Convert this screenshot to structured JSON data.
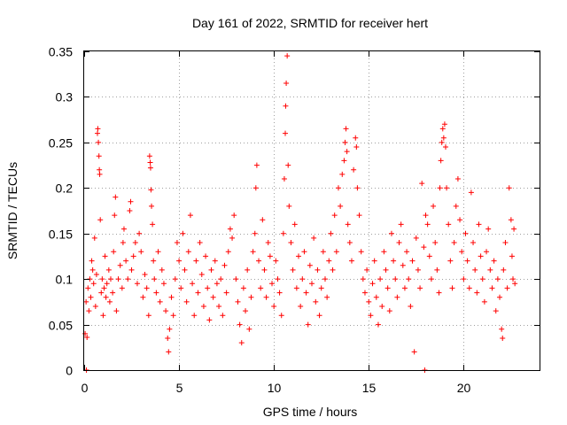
{
  "chart_data": {
    "type": "scatter",
    "title": "Day 161 of 2022, SRMTID for receiver hert",
    "xlabel": "GPS time / hours",
    "ylabel": "SRMTID / TECUs",
    "xlim": [
      0,
      24
    ],
    "ylim": [
      0,
      0.35
    ],
    "xticks": [
      "0",
      "5",
      "10",
      "15",
      "20"
    ],
    "yticks": [
      "0",
      "0.05",
      "0.1",
      "0.15",
      "0.2",
      "0.25",
      "0.3",
      "0.35"
    ],
    "grid": true,
    "marker": "plus",
    "series": [
      {
        "color": "#ff0000",
        "points": [
          [
            0.05,
            0.04
          ],
          [
            0.1,
            0.075
          ],
          [
            0.12,
            0.0
          ],
          [
            0.15,
            0.036
          ],
          [
            0.2,
            0.09
          ],
          [
            0.25,
            0.065
          ],
          [
            0.3,
            0.1
          ],
          [
            0.35,
            0.08
          ],
          [
            0.4,
            0.12
          ],
          [
            0.45,
            0.11
          ],
          [
            0.5,
            0.095
          ],
          [
            0.55,
            0.145
          ],
          [
            0.6,
            0.07
          ],
          [
            0.65,
            0.105
          ],
          [
            0.7,
            0.26
          ],
          [
            0.72,
            0.265
          ],
          [
            0.75,
            0.25
          ],
          [
            0.78,
            0.235
          ],
          [
            0.8,
            0.22
          ],
          [
            0.82,
            0.215
          ],
          [
            0.85,
            0.165
          ],
          [
            0.9,
            0.085
          ],
          [
            0.95,
            0.1
          ],
          [
            1.0,
            0.06
          ],
          [
            1.05,
            0.09
          ],
          [
            1.1,
            0.125
          ],
          [
            1.15,
            0.08
          ],
          [
            1.2,
            0.095
          ],
          [
            1.3,
            0.11
          ],
          [
            1.35,
            0.075
          ],
          [
            1.4,
            0.1
          ],
          [
            1.5,
            0.085
          ],
          [
            1.55,
            0.13
          ],
          [
            1.6,
            0.17
          ],
          [
            1.65,
            0.19
          ],
          [
            1.7,
            0.065
          ],
          [
            1.8,
            0.1
          ],
          [
            1.9,
            0.115
          ],
          [
            2.0,
            0.09
          ],
          [
            2.05,
            0.14
          ],
          [
            2.1,
            0.155
          ],
          [
            2.2,
            0.12
          ],
          [
            2.3,
            0.1
          ],
          [
            2.4,
            0.175
          ],
          [
            2.45,
            0.185
          ],
          [
            2.5,
            0.11
          ],
          [
            2.6,
            0.125
          ],
          [
            2.7,
            0.14
          ],
          [
            2.8,
            0.095
          ],
          [
            2.9,
            0.15
          ],
          [
            3.0,
            0.13
          ],
          [
            3.1,
            0.08
          ],
          [
            3.2,
            0.105
          ],
          [
            3.3,
            0.09
          ],
          [
            3.4,
            0.06
          ],
          [
            3.45,
            0.235
          ],
          [
            3.48,
            0.228
          ],
          [
            3.5,
            0.222
          ],
          [
            3.52,
            0.198
          ],
          [
            3.55,
            0.18
          ],
          [
            3.6,
            0.16
          ],
          [
            3.65,
            0.12
          ],
          [
            3.7,
            0.1
          ],
          [
            3.8,
            0.085
          ],
          [
            3.9,
            0.13
          ],
          [
            4.0,
            0.075
          ],
          [
            4.1,
            0.11
          ],
          [
            4.2,
            0.095
          ],
          [
            4.3,
            0.065
          ],
          [
            4.4,
            0.035
          ],
          [
            4.45,
            0.02
          ],
          [
            4.5,
            0.045
          ],
          [
            4.6,
            0.08
          ],
          [
            4.7,
            0.06
          ],
          [
            4.8,
            0.1
          ],
          [
            4.9,
            0.14
          ],
          [
            5.0,
            0.12
          ],
          [
            5.1,
            0.09
          ],
          [
            5.2,
            0.15
          ],
          [
            5.3,
            0.11
          ],
          [
            5.4,
            0.075
          ],
          [
            5.5,
            0.13
          ],
          [
            5.6,
            0.17
          ],
          [
            5.7,
            0.095
          ],
          [
            5.8,
            0.06
          ],
          [
            5.9,
            0.12
          ],
          [
            6.0,
            0.085
          ],
          [
            6.1,
            0.14
          ],
          [
            6.2,
            0.105
          ],
          [
            6.3,
            0.07
          ],
          [
            6.4,
            0.125
          ],
          [
            6.5,
            0.09
          ],
          [
            6.6,
            0.055
          ],
          [
            6.7,
            0.11
          ],
          [
            6.8,
            0.08
          ],
          [
            6.9,
            0.12
          ],
          [
            7.0,
            0.095
          ],
          [
            7.1,
            0.07
          ],
          [
            7.2,
            0.1
          ],
          [
            7.3,
            0.06
          ],
          [
            7.4,
            0.115
          ],
          [
            7.5,
            0.085
          ],
          [
            7.6,
            0.13
          ],
          [
            7.7,
            0.155
          ],
          [
            7.8,
            0.145
          ],
          [
            7.9,
            0.17
          ],
          [
            8.0,
            0.1
          ],
          [
            8.1,
            0.075
          ],
          [
            8.2,
            0.05
          ],
          [
            8.3,
            0.03
          ],
          [
            8.4,
            0.09
          ],
          [
            8.5,
            0.065
          ],
          [
            8.6,
            0.11
          ],
          [
            8.7,
            0.045
          ],
          [
            8.8,
            0.08
          ],
          [
            8.9,
            0.13
          ],
          [
            9.0,
            0.15
          ],
          [
            9.05,
            0.2
          ],
          [
            9.1,
            0.225
          ],
          [
            9.2,
            0.12
          ],
          [
            9.3,
            0.09
          ],
          [
            9.4,
            0.165
          ],
          [
            9.5,
            0.11
          ],
          [
            9.6,
            0.08
          ],
          [
            9.7,
            0.14
          ],
          [
            9.8,
            0.125
          ],
          [
            9.9,
            0.095
          ],
          [
            10.0,
            0.07
          ],
          [
            10.1,
            0.12
          ],
          [
            10.2,
            0.1
          ],
          [
            10.3,
            0.085
          ],
          [
            10.4,
            0.06
          ],
          [
            10.5,
            0.15
          ],
          [
            10.55,
            0.21
          ],
          [
            10.6,
            0.26
          ],
          [
            10.62,
            0.29
          ],
          [
            10.65,
            0.315
          ],
          [
            10.7,
            0.345
          ],
          [
            10.75,
            0.225
          ],
          [
            10.8,
            0.18
          ],
          [
            10.9,
            0.14
          ],
          [
            11.0,
            0.11
          ],
          [
            11.1,
            0.16
          ],
          [
            11.2,
            0.09
          ],
          [
            11.3,
            0.125
          ],
          [
            11.4,
            0.07
          ],
          [
            11.5,
            0.1
          ],
          [
            11.6,
            0.13
          ],
          [
            11.7,
            0.085
          ],
          [
            11.8,
            0.05
          ],
          [
            11.9,
            0.115
          ],
          [
            12.0,
            0.095
          ],
          [
            12.1,
            0.145
          ],
          [
            12.2,
            0.075
          ],
          [
            12.3,
            0.11
          ],
          [
            12.4,
            0.06
          ],
          [
            12.5,
            0.09
          ],
          [
            12.6,
            0.13
          ],
          [
            12.7,
            0.1
          ],
          [
            12.8,
            0.08
          ],
          [
            12.9,
            0.12
          ],
          [
            13.0,
            0.15
          ],
          [
            13.1,
            0.11
          ],
          [
            13.2,
            0.17
          ],
          [
            13.3,
            0.13
          ],
          [
            13.4,
            0.2
          ],
          [
            13.5,
            0.18
          ],
          [
            13.6,
            0.215
          ],
          [
            13.7,
            0.23
          ],
          [
            13.75,
            0.25
          ],
          [
            13.8,
            0.265
          ],
          [
            13.85,
            0.24
          ],
          [
            13.9,
            0.16
          ],
          [
            14.0,
            0.14
          ],
          [
            14.1,
            0.12
          ],
          [
            14.2,
            0.22
          ],
          [
            14.3,
            0.255
          ],
          [
            14.35,
            0.245
          ],
          [
            14.4,
            0.2
          ],
          [
            14.5,
            0.17
          ],
          [
            14.6,
            0.13
          ],
          [
            14.7,
            0.1
          ],
          [
            14.8,
            0.085
          ],
          [
            14.9,
            0.11
          ],
          [
            15.0,
            0.075
          ],
          [
            15.1,
            0.06
          ],
          [
            15.2,
            0.095
          ],
          [
            15.3,
            0.12
          ],
          [
            15.4,
            0.08
          ],
          [
            15.5,
            0.05
          ],
          [
            15.6,
            0.1
          ],
          [
            15.7,
            0.07
          ],
          [
            15.8,
            0.13
          ],
          [
            15.9,
            0.11
          ],
          [
            16.0,
            0.09
          ],
          [
            16.1,
            0.065
          ],
          [
            16.2,
            0.15
          ],
          [
            16.3,
            0.12
          ],
          [
            16.4,
            0.1
          ],
          [
            16.5,
            0.08
          ],
          [
            16.6,
            0.14
          ],
          [
            16.7,
            0.16
          ],
          [
            16.8,
            0.115
          ],
          [
            16.9,
            0.09
          ],
          [
            17.0,
            0.13
          ],
          [
            17.1,
            0.1
          ],
          [
            17.2,
            0.07
          ],
          [
            17.3,
            0.12
          ],
          [
            17.4,
            0.02
          ],
          [
            17.5,
            0.145
          ],
          [
            17.6,
            0.11
          ],
          [
            17.7,
            0.09
          ],
          [
            17.8,
            0.205
          ],
          [
            17.9,
            0.135
          ],
          [
            17.95,
            0.0
          ],
          [
            18.0,
            0.17
          ],
          [
            18.1,
            0.16
          ],
          [
            18.2,
            0.125
          ],
          [
            18.3,
            0.1
          ],
          [
            18.4,
            0.18
          ],
          [
            18.5,
            0.14
          ],
          [
            18.6,
            0.11
          ],
          [
            18.7,
            0.085
          ],
          [
            18.75,
            0.2
          ],
          [
            18.8,
            0.23
          ],
          [
            18.85,
            0.25
          ],
          [
            18.9,
            0.265
          ],
          [
            18.95,
            0.255
          ],
          [
            19.0,
            0.27
          ],
          [
            19.05,
            0.245
          ],
          [
            19.1,
            0.2
          ],
          [
            19.2,
            0.16
          ],
          [
            19.3,
            0.12
          ],
          [
            19.4,
            0.09
          ],
          [
            19.5,
            0.14
          ],
          [
            19.6,
            0.18
          ],
          [
            19.7,
            0.21
          ],
          [
            19.8,
            0.165
          ],
          [
            19.9,
            0.13
          ],
          [
            20.0,
            0.1
          ],
          [
            20.1,
            0.15
          ],
          [
            20.2,
            0.12
          ],
          [
            20.3,
            0.09
          ],
          [
            20.4,
            0.195
          ],
          [
            20.5,
            0.14
          ],
          [
            20.6,
            0.11
          ],
          [
            20.7,
            0.085
          ],
          [
            20.8,
            0.16
          ],
          [
            20.9,
            0.125
          ],
          [
            21.0,
            0.1
          ],
          [
            21.1,
            0.075
          ],
          [
            21.2,
            0.13
          ],
          [
            21.3,
            0.155
          ],
          [
            21.4,
            0.11
          ],
          [
            21.5,
            0.09
          ],
          [
            21.6,
            0.12
          ],
          [
            21.7,
            0.065
          ],
          [
            21.8,
            0.1
          ],
          [
            21.9,
            0.08
          ],
          [
            22.0,
            0.045
          ],
          [
            22.05,
            0.035
          ],
          [
            22.1,
            0.11
          ],
          [
            22.2,
            0.14
          ],
          [
            22.3,
            0.09
          ],
          [
            22.4,
            0.2
          ],
          [
            22.5,
            0.165
          ],
          [
            22.55,
            0.125
          ],
          [
            22.6,
            0.1
          ],
          [
            22.65,
            0.155
          ],
          [
            22.7,
            0.095
          ]
        ]
      }
    ]
  }
}
